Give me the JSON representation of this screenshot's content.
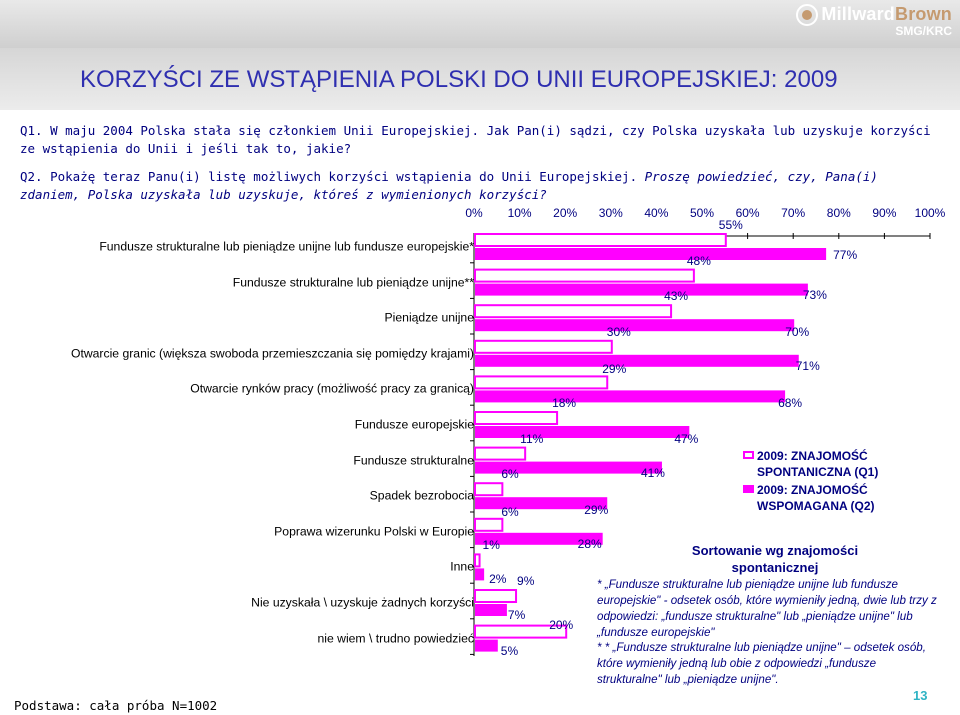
{
  "header": {
    "title": "KORZYŚCI ZE WSTĄPIENIA POLSKI DO UNII EUROPEJSKIEJ: 2009",
    "logo_line1_a": "Millward",
    "logo_line1_b": "Brown",
    "logo_line2": "SMG/KRC"
  },
  "questions": {
    "q1": "Q1. W maju 2004 Polska stała się członkiem Unii Europejskiej. Jak Pan(i) sądzi, czy Polska uzyskała lub uzyskuje korzyści ze wstąpienia do Unii i jeśli tak to, jakie?",
    "q2_plain": "Q2. Pokażę teraz Panu(i) listę możliwych korzyści wstąpienia do Unii Europejskiej.",
    "q2_italic": "Proszę powiedzieć, czy, Pana(i) zdaniem, Polska uzyskała lub uzyskuje, któreś z wymienionych korzyści?"
  },
  "chart_data": {
    "type": "bar",
    "orientation": "horizontal",
    "x_ticks": [
      "0%",
      "10%",
      "20%",
      "30%",
      "40%",
      "50%",
      "60%",
      "70%",
      "80%",
      "90%",
      "100%"
    ],
    "xlim": [
      0,
      100
    ],
    "categories": [
      "Fundusze strukturalne lub pieniądze unijne lub fundusze europejskie*",
      "Fundusze strukturalne lub pieniądze unijne**",
      "Pieniądze unijne",
      "Otwarcie granic (większa swoboda przemieszczania się pomiędzy krajami)",
      "Otwarcie rynków pracy (możliwość pracy za granicą)",
      "Fundusze europejskie",
      "Fundusze strukturalne",
      "Spadek bezrobocia",
      "Poprawa wizerunku Polski w Europie",
      "Inne",
      "Nie uzyskała \\ uzyskuje żadnych korzyści",
      "nie wiem \\ trudno powiedzieć"
    ],
    "series": [
      {
        "name": "2009: ZNAJOMOŚĆ SPONTANICZNA (Q1)",
        "style": "outline",
        "values": [
          55,
          48,
          43,
          30,
          29,
          18,
          11,
          6,
          6,
          1,
          9,
          20
        ],
        "labels": [
          "55%",
          "48%",
          "43%",
          "30%",
          "29%",
          "18%",
          "11%",
          "6%",
          "6%",
          "1%",
          "9%",
          "20%"
        ]
      },
      {
        "name": "2009: ZNAJOMOŚĆ WSPOMAGANA (Q2)",
        "style": "filled",
        "values": [
          77,
          73,
          70,
          71,
          68,
          47,
          41,
          29,
          28,
          2,
          7,
          5
        ],
        "labels": [
          "77%",
          "73%",
          "70%",
          "71%",
          "68%",
          "47%",
          "41%",
          "29%",
          "28%",
          "2%",
          "7%",
          "5%"
        ]
      }
    ],
    "colors": {
      "bar": "#ff00ff",
      "outline_fill": "#ffffff",
      "axis": "#000000",
      "text": "#000080"
    },
    "legend_position": "right"
  },
  "legend": {
    "item1": "2009: ZNAJOMOŚĆ SPONTANICZNA (Q1)",
    "item2": "2009: ZNAJOMOŚĆ WSPOMAGANA (Q2)"
  },
  "sort_note": "Sortowanie wg znajomości spontanicznej",
  "footnotes": {
    "note1": "* „Fundusze strukturalne lub pieniądze unijne lub fundusze europejskie\" - odsetek osób, które wymieniły jedną, dwie lub trzy z odpowiedzi: „fundusze strukturalne\" lub „pieniądze unijne\" lub „fundusze europejskie\"",
    "note2": "* * „Fundusze strukturalne lub pieniądze unijne\" – odsetek osób, które wymieniły jedną lub obie z odpowiedzi „fundusze strukturalne\" lub „pieniądze unijne\"."
  },
  "base": "Podstawa: cała próba N=1002",
  "page_number": "13"
}
